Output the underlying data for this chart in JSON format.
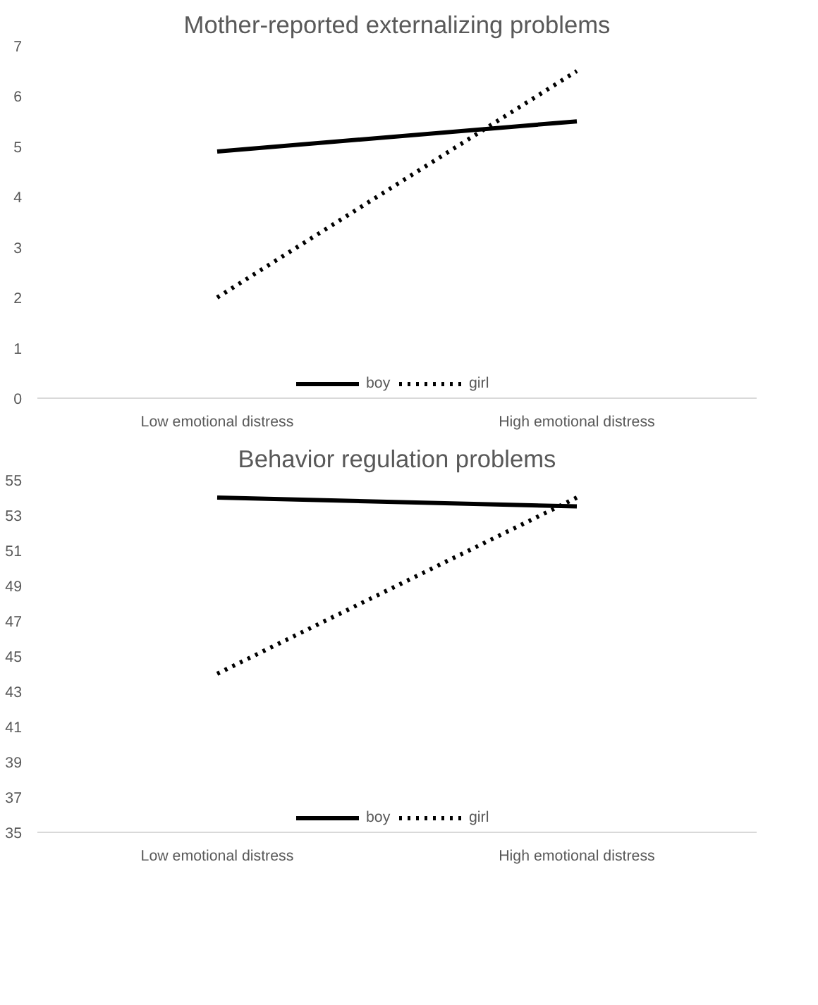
{
  "chart_data": [
    {
      "type": "line",
      "title": "Mother-reported externalizing problems",
      "categories": [
        "Low emotional distress",
        "High emotional distress"
      ],
      "series": [
        {
          "name": "boy",
          "color": "#000000",
          "values": [
            4.9,
            5.5
          ],
          "line_style": "solid"
        },
        {
          "name": "girl",
          "color": "#000000",
          "values": [
            2.0,
            6.5
          ],
          "line_style": "dotted"
        }
      ],
      "ylim": [
        0,
        7
      ],
      "yticks": [
        0,
        1,
        2,
        3,
        4,
        5,
        6,
        7
      ],
      "grid": false,
      "legend": "bottom",
      "marker": "none"
    },
    {
      "type": "line",
      "title": "Behavior regulation problems",
      "categories": [
        "Low emotional distress",
        "High emotional distress"
      ],
      "series": [
        {
          "name": "boy",
          "color": "#000000",
          "values": [
            54.0,
            53.5
          ],
          "line_style": "solid"
        },
        {
          "name": "girl",
          "color": "#000000",
          "values": [
            44.0,
            54.0
          ],
          "line_style": "dotted"
        }
      ],
      "ylim": [
        35,
        55
      ],
      "yticks": [
        35,
        37,
        39,
        41,
        43,
        45,
        47,
        49,
        51,
        53,
        55
      ],
      "grid": false,
      "legend": "bottom",
      "marker": "none"
    }
  ]
}
